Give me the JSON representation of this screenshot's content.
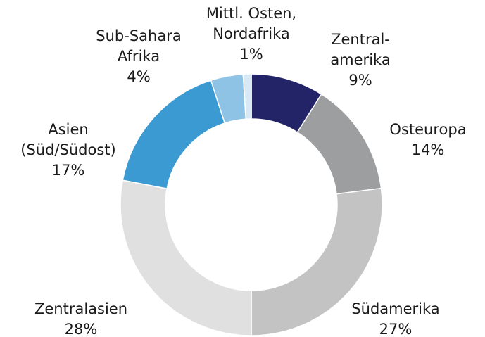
{
  "chart_data": {
    "type": "donut",
    "categories": [
      "Zentral-\namerika",
      "Osteuropa",
      "Südamerika",
      "Zentralasien",
      "Asien\n(Süd/Südost)",
      "Sub-Sahara\nAfrika",
      "Mittl. Osten,\nNordafrika"
    ],
    "values": [
      9,
      14,
      27,
      28,
      17,
      4,
      1
    ],
    "value_labels": [
      "9%",
      "14%",
      "27%",
      "28%",
      "17%",
      "4%",
      "1%"
    ],
    "colors": [
      "#232368",
      "#9d9ea0",
      "#c3c3c3",
      "#e0e0e0",
      "#3a9ad1",
      "#8ec3e6",
      "#d7e9f5"
    ]
  }
}
